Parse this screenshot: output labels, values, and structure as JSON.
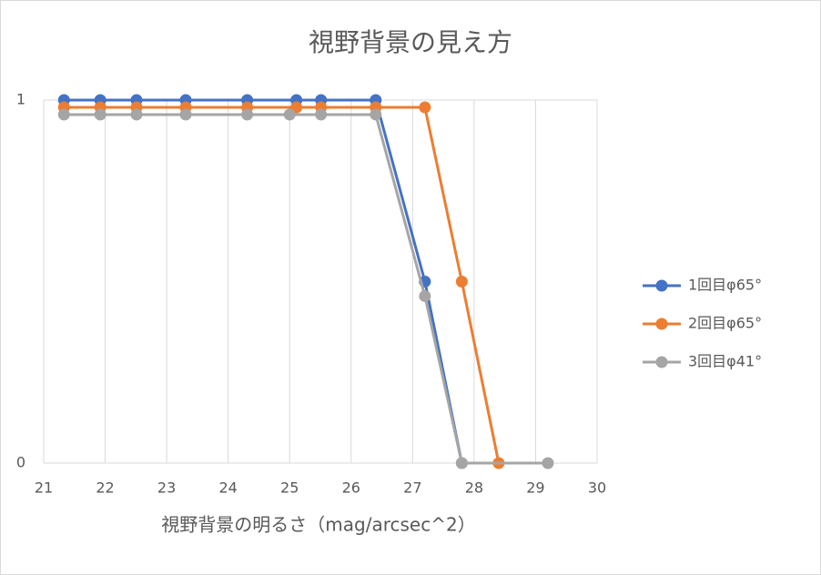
{
  "chart_data": {
    "type": "line",
    "title": "視野背景の見え方",
    "x_label": "視野背景の明るさ（mag/arcsec^2）",
    "xlim": [
      21,
      30
    ],
    "xticks": [
      21,
      22,
      23,
      24,
      25,
      26,
      27,
      28,
      29,
      30
    ],
    "ylim": [
      0,
      1
    ],
    "yticks": [
      0,
      1
    ],
    "grid": true,
    "legend": "right",
    "series": [
      {
        "name": "1回目φ65°",
        "color": "#4472c4",
        "x": [
          21.33,
          21.92,
          22.51,
          23.31,
          24.31,
          25.11,
          25.51,
          26.4,
          27.2,
          27.8
        ],
        "values": [
          1,
          1,
          1,
          1,
          1,
          1,
          1,
          1,
          0.5,
          0
        ]
      },
      {
        "name": "2回目φ65°",
        "color": "#ed7d31",
        "x": [
          21.33,
          21.92,
          22.51,
          23.31,
          24.31,
          25.11,
          25.51,
          26.4,
          27.2,
          27.8,
          28.4
        ],
        "values": [
          0.98,
          0.98,
          0.98,
          0.98,
          0.98,
          0.98,
          0.98,
          0.98,
          0.98,
          0.5,
          0
        ]
      },
      {
        "name": "3回目φ41°",
        "color": "#a5a5a5",
        "x": [
          21.33,
          21.92,
          22.51,
          23.31,
          24.31,
          25.0,
          25.51,
          26.4,
          27.2,
          27.8,
          29.2
        ],
        "values": [
          0.96,
          0.96,
          0.96,
          0.96,
          0.96,
          0.96,
          0.96,
          0.96,
          0.46,
          0,
          0
        ]
      }
    ]
  }
}
